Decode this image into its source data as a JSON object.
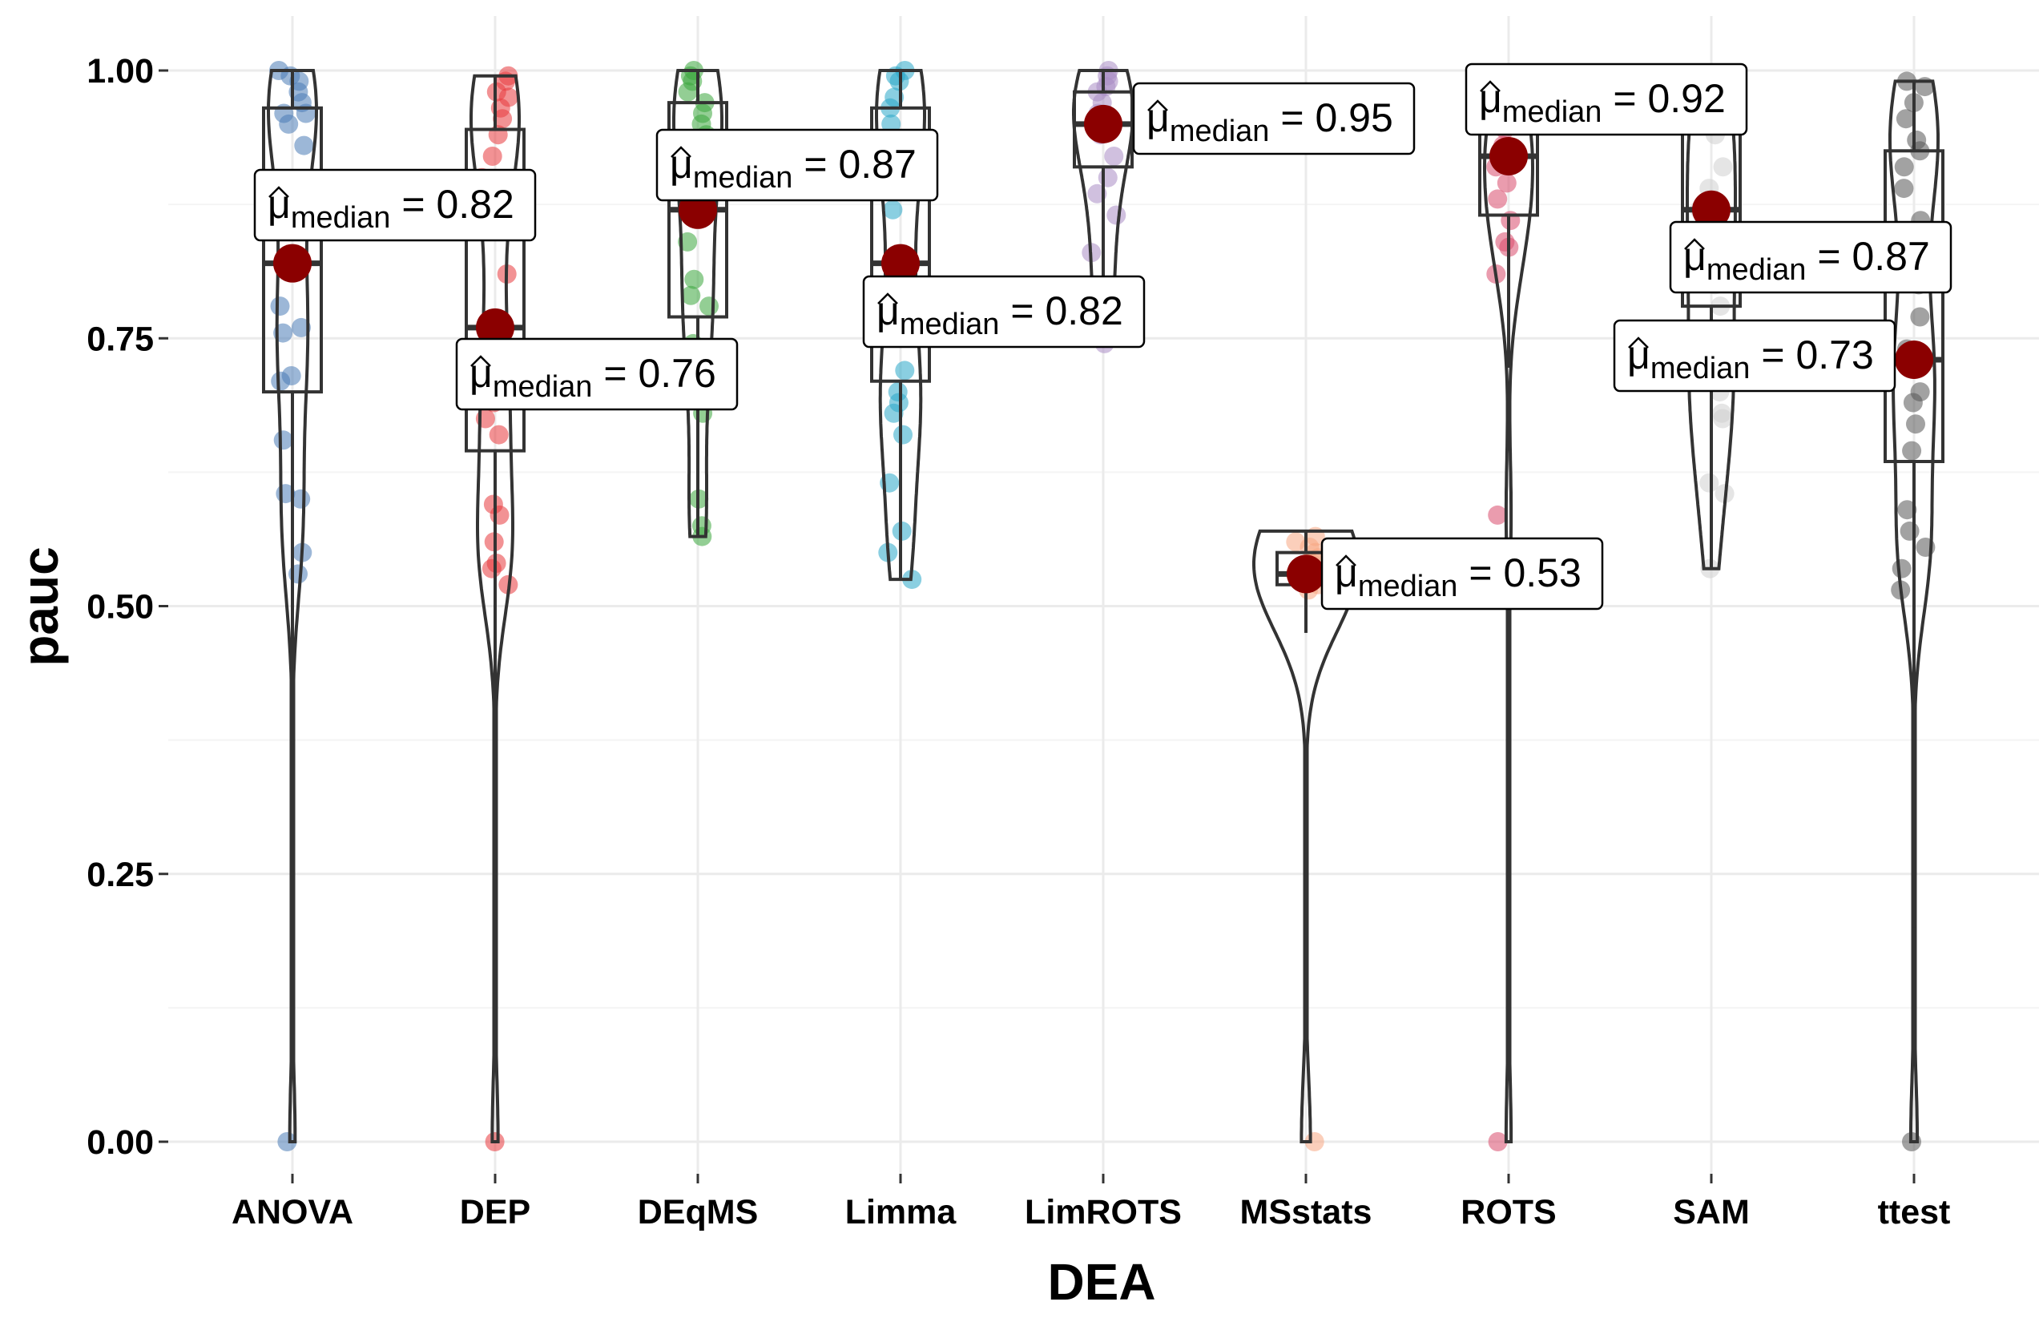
{
  "chart_data": {
    "type": "violin-box",
    "xlabel": "DEA",
    "ylabel": "pauc",
    "ylim": [
      0,
      1
    ],
    "yticks": [
      "0.00",
      "0.25",
      "0.50",
      "0.75",
      "1.00"
    ],
    "grid": true,
    "categories": [
      "ANOVA",
      "DEP",
      "DEqMS",
      "Limma",
      "LimROTS",
      "MSstats",
      "ROTS",
      "SAM",
      "ttest"
    ],
    "colors": [
      "#4a7bb7",
      "#e8383d",
      "#3aa63c",
      "#2aa7c9",
      "#a98cc4",
      "#f8a784",
      "#d84a6b",
      "#d0d0d0",
      "#555555"
    ],
    "label_prefix": "μ",
    "label_subscript": "median",
    "label_eq": " = ",
    "series": [
      {
        "name": "ANOVA",
        "median": 0.82,
        "median_label": "0.82",
        "q1": 0.7,
        "q3": 0.965,
        "min": 0.0,
        "max": 1.0,
        "points": [
          1.0,
          0.995,
          0.99,
          0.98,
          0.97,
          0.96,
          0.96,
          0.95,
          0.93,
          0.88,
          0.85,
          0.82,
          0.78,
          0.76,
          0.755,
          0.715,
          0.71,
          0.655,
          0.605,
          0.6,
          0.55,
          0.53,
          0.0
        ]
      },
      {
        "name": "DEP",
        "median": 0.76,
        "median_label": "0.76",
        "q1": 0.645,
        "q3": 0.945,
        "min": 0.0,
        "max": 0.995,
        "points": [
          0.995,
          0.99,
          0.98,
          0.975,
          0.965,
          0.955,
          0.94,
          0.92,
          0.9,
          0.85,
          0.81,
          0.76,
          0.72,
          0.69,
          0.675,
          0.66,
          0.595,
          0.585,
          0.56,
          0.54,
          0.535,
          0.52,
          0.0
        ]
      },
      {
        "name": "DEqMS",
        "median": 0.87,
        "median_label": "0.87",
        "q1": 0.77,
        "q3": 0.97,
        "min": 0.565,
        "max": 1.0,
        "points": [
          1.0,
          0.995,
          0.99,
          0.98,
          0.97,
          0.96,
          0.95,
          0.94,
          0.92,
          0.89,
          0.87,
          0.84,
          0.805,
          0.79,
          0.78,
          0.745,
          0.72,
          0.68,
          0.6,
          0.575,
          0.565
        ]
      },
      {
        "name": "Limma",
        "median": 0.82,
        "median_label": "0.82",
        "q1": 0.71,
        "q3": 0.965,
        "min": 0.525,
        "max": 1.0,
        "points": [
          1.0,
          0.995,
          0.99,
          0.975,
          0.965,
          0.95,
          0.93,
          0.9,
          0.87,
          0.82,
          0.8,
          0.76,
          0.72,
          0.7,
          0.69,
          0.68,
          0.66,
          0.615,
          0.57,
          0.55,
          0.525
        ]
      },
      {
        "name": "LimROTS",
        "median": 0.95,
        "median_label": "0.95",
        "q1": 0.91,
        "q3": 0.98,
        "min": 0.745,
        "max": 1.0,
        "points": [
          1.0,
          0.995,
          0.99,
          0.985,
          0.98,
          0.97,
          0.96,
          0.955,
          0.95,
          0.94,
          0.92,
          0.9,
          0.885,
          0.865,
          0.83,
          0.8,
          0.775,
          0.745
        ]
      },
      {
        "name": "MSstats",
        "median": 0.53,
        "median_label": "0.53",
        "q1": 0.52,
        "q3": 0.55,
        "min": 0.0,
        "max": 0.57,
        "points": [
          0.565,
          0.56,
          0.555,
          0.55,
          0.545,
          0.54,
          0.535,
          0.53,
          0.53,
          0.525,
          0.52,
          0.515,
          0.0
        ]
      },
      {
        "name": "ROTS",
        "median": 0.92,
        "median_label": "0.92",
        "q1": 0.865,
        "q3": 0.96,
        "min": 0.0,
        "max": 0.97,
        "points": [
          0.97,
          0.965,
          0.955,
          0.945,
          0.93,
          0.92,
          0.91,
          0.895,
          0.88,
          0.86,
          0.84,
          0.835,
          0.81,
          0.585,
          0.0
        ]
      },
      {
        "name": "SAM",
        "median": 0.87,
        "median_label": "0.87",
        "q1": 0.78,
        "q3": 0.97,
        "min": 0.535,
        "max": 0.99,
        "points": [
          0.99,
          0.98,
          0.96,
          0.94,
          0.91,
          0.89,
          0.87,
          0.85,
          0.82,
          0.8,
          0.78,
          0.75,
          0.72,
          0.7,
          0.68,
          0.675,
          0.615,
          0.605,
          0.535
        ]
      },
      {
        "name": "ttest",
        "median": 0.73,
        "median_label": "0.73",
        "q1": 0.635,
        "q3": 0.925,
        "min": 0.0,
        "max": 0.99,
        "points": [
          0.99,
          0.985,
          0.97,
          0.955,
          0.935,
          0.925,
          0.91,
          0.89,
          0.86,
          0.8,
          0.77,
          0.74,
          0.73,
          0.7,
          0.69,
          0.67,
          0.645,
          0.59,
          0.57,
          0.555,
          0.535,
          0.515,
          0.0
        ]
      }
    ]
  }
}
